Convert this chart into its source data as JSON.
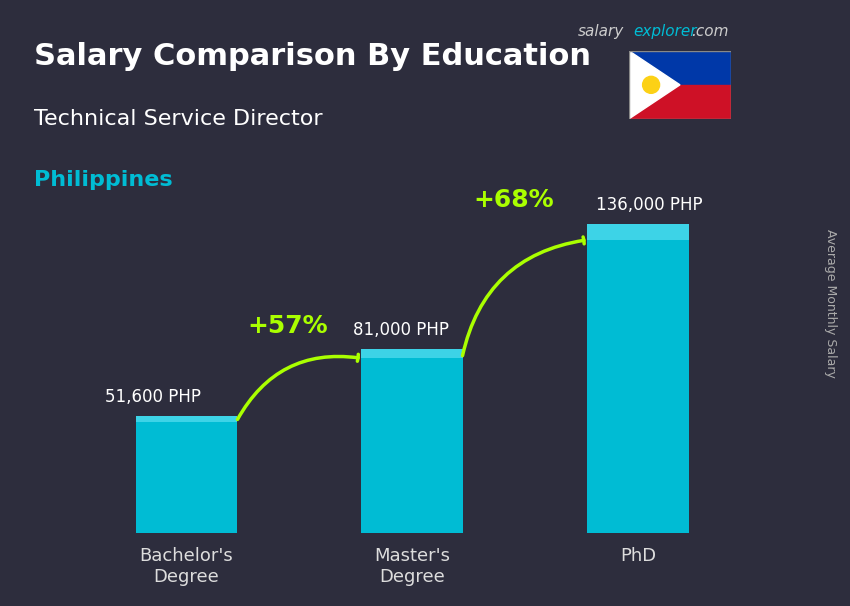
{
  "title": "Salary Comparison By Education",
  "subtitle": "Technical Service Director",
  "country": "Philippines",
  "watermark": "salaryexplorer.com",
  "ylabel": "Average Monthly Salary",
  "categories": [
    "Bachelor's\nDegree",
    "Master's\nDegree",
    "PhD"
  ],
  "values": [
    51600,
    81000,
    136000
  ],
  "value_labels": [
    "51,600 PHP",
    "81,000 PHP",
    "136,000 PHP"
  ],
  "bar_color": "#00bcd4",
  "bar_color_top": "#4dd9ec",
  "background_color": "#1a1a2e",
  "title_color": "#ffffff",
  "subtitle_color": "#ffffff",
  "country_color": "#00bcd4",
  "watermark_salary_color": "#888888",
  "watermark_explorer_color": "#00bcd4",
  "pct_arrows": [
    {
      "label": "+57%",
      "from_bar": 0,
      "to_bar": 1
    },
    {
      "label": "+68%",
      "from_bar": 1,
      "to_bar": 2
    }
  ],
  "arrow_color": "#aaff00",
  "arrow_text_color": "#aaff00",
  "value_label_color": "#ffffff",
  "tick_label_color": "#dddddd",
  "ylim": [
    0,
    160000
  ],
  "figsize": [
    8.5,
    6.06
  ],
  "dpi": 100
}
